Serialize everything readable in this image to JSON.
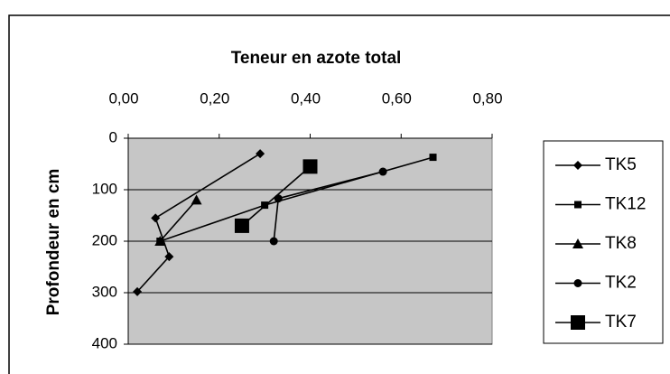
{
  "chart_data": {
    "type": "line",
    "x_label": "Teneur en azote total",
    "y_label": "Profondeur en cm",
    "xlim": [
      0,
      0.8
    ],
    "xticks": [
      {
        "value": 0,
        "label": "0,00"
      },
      {
        "value": 0.2,
        "label": "0,20"
      },
      {
        "value": 0.4,
        "label": "0,40"
      },
      {
        "value": 0.6,
        "label": "0,60"
      },
      {
        "value": 0.8,
        "label": "0,80"
      }
    ],
    "ylim": [
      0,
      400
    ],
    "yticks": [
      0,
      100,
      200,
      300,
      400
    ],
    "y_inverted": true,
    "x_axis_position": "top",
    "grid": true,
    "legend": "right",
    "series": [
      {
        "name": "TK5",
        "color": "#000000",
        "marker": "diamond",
        "x": [
          0.29,
          0.06,
          0.09,
          0.02
        ],
        "values": [
          30,
          155,
          230,
          298
        ]
      },
      {
        "name": "TK12",
        "color": "#000000",
        "marker": "square",
        "x": [
          0.67,
          0.3,
          0.07
        ],
        "values": [
          37,
          130,
          200
        ]
      },
      {
        "name": "TK8",
        "color": "#000000",
        "marker": "triangle",
        "x": [
          0.15,
          0.07
        ],
        "values": [
          120,
          200
        ]
      },
      {
        "name": "TK2",
        "color": "#000000",
        "marker": "circle",
        "x": [
          0.56,
          0.33,
          0.32
        ],
        "values": [
          65,
          117,
          200
        ]
      },
      {
        "name": "TK7",
        "color": "#000000",
        "marker": "big-square",
        "x": [
          0.4,
          0.25
        ],
        "values": [
          55,
          170
        ]
      }
    ]
  }
}
